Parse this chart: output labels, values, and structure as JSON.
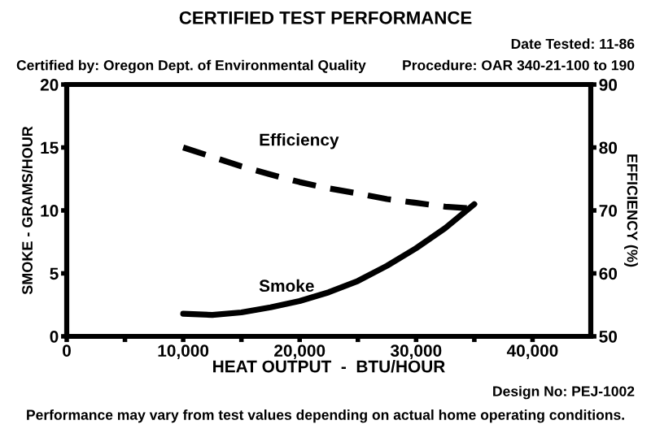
{
  "chart_data": {
    "type": "line",
    "title": "CERTIFIED TEST PERFORMANCE",
    "xlabel": "HEAT OUTPUT  -  BTU/HOUR",
    "ylabel": "SMOKE - GRAMS/HOUR",
    "y2label": "EFFICIENCY (%)",
    "x": [
      10000,
      12500,
      15000,
      17500,
      20000,
      22500,
      25000,
      27500,
      30000,
      32500,
      35000
    ],
    "series": [
      {
        "name": "Efficiency",
        "color": "#000000",
        "axis": "y2",
        "line_style": "dashed",
        "values": [
          80,
          78.5,
          77,
          75.7,
          74.5,
          73.5,
          72.7,
          71.8,
          71.2,
          70.6,
          70.3
        ]
      },
      {
        "name": "Smoke",
        "color": "#000000",
        "axis": "y",
        "line_style": "solid",
        "values": [
          1.8,
          1.7,
          1.9,
          2.3,
          2.8,
          3.5,
          4.4,
          5.6,
          7.0,
          8.6,
          10.5
        ]
      }
    ],
    "xlim": [
      0,
      45000
    ],
    "xticks": [
      0,
      {
        "value": 5000,
        "label": null
      },
      {
        "value": 10000,
        "label": "10,000"
      },
      {
        "value": 15000,
        "label": null
      },
      {
        "value": 20000,
        "label": "20,000"
      },
      {
        "value": 25000,
        "label": null
      },
      {
        "value": 30000,
        "label": "30,000"
      },
      {
        "value": 35000,
        "label": null
      },
      {
        "value": 40000,
        "label": "40,000"
      }
    ],
    "ylim": [
      0,
      20
    ],
    "yticks": [
      0,
      5,
      10,
      15,
      20
    ],
    "y2lim": [
      50,
      90
    ],
    "y2ticks": [
      50,
      60,
      70,
      80,
      90
    ],
    "grid": false,
    "legend": false,
    "marker": "none",
    "annotations": [
      "Certified by: Oregon Dept. of Environmental Quality",
      "Date Tested: 11-86",
      "Procedure: OAR 340-21-100 to 190",
      "Design No: PEJ-1002",
      "Performance may vary from test values depending on actual home operating conditions."
    ]
  }
}
